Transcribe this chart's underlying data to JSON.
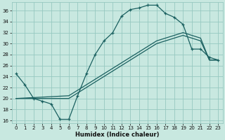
{
  "xlabel": "Humidex (Indice chaleur)",
  "bg_color": "#c8e8e0",
  "grid_color": "#96c8c0",
  "line_color": "#1a6060",
  "xlim": [
    -0.5,
    23.5
  ],
  "ylim": [
    15.5,
    37.5
  ],
  "yticks": [
    16,
    18,
    20,
    22,
    24,
    26,
    28,
    30,
    32,
    34,
    36
  ],
  "xticks": [
    0,
    1,
    2,
    3,
    4,
    5,
    6,
    7,
    8,
    9,
    10,
    11,
    12,
    13,
    14,
    15,
    16,
    17,
    18,
    19,
    20,
    21,
    22,
    23
  ],
  "curve1_x": [
    0,
    1,
    2,
    3,
    4,
    5,
    6,
    7,
    8,
    9,
    10,
    11,
    12,
    13,
    14,
    15,
    16,
    17,
    18,
    19,
    20,
    21,
    22,
    23
  ],
  "curve1_y": [
    24.5,
    22.5,
    20.0,
    19.5,
    19.0,
    16.2,
    16.2,
    20.5,
    24.5,
    28.0,
    30.5,
    32.0,
    35.0,
    36.2,
    36.5,
    37.0,
    37.0,
    35.5,
    34.8,
    33.5,
    29.0,
    29.0,
    27.5,
    27.0
  ],
  "curve2_x": [
    0,
    6,
    7,
    8,
    9,
    10,
    11,
    12,
    13,
    14,
    15,
    16,
    17,
    18,
    19,
    20,
    21,
    22,
    23
  ],
  "curve2_y": [
    20.0,
    20.5,
    21.5,
    22.5,
    23.5,
    24.5,
    25.5,
    26.5,
    27.5,
    28.5,
    29.5,
    30.5,
    31.0,
    31.5,
    32.0,
    31.5,
    31.0,
    27.0,
    27.0
  ],
  "curve3_x": [
    0,
    6,
    7,
    8,
    9,
    10,
    11,
    12,
    13,
    14,
    15,
    16,
    17,
    18,
    19,
    20,
    21,
    22,
    23
  ],
  "curve3_y": [
    20.0,
    20.0,
    21.0,
    22.0,
    23.0,
    24.0,
    25.0,
    26.0,
    27.0,
    28.0,
    29.0,
    30.0,
    30.5,
    31.0,
    31.5,
    31.0,
    30.5,
    27.0,
    27.0
  ]
}
